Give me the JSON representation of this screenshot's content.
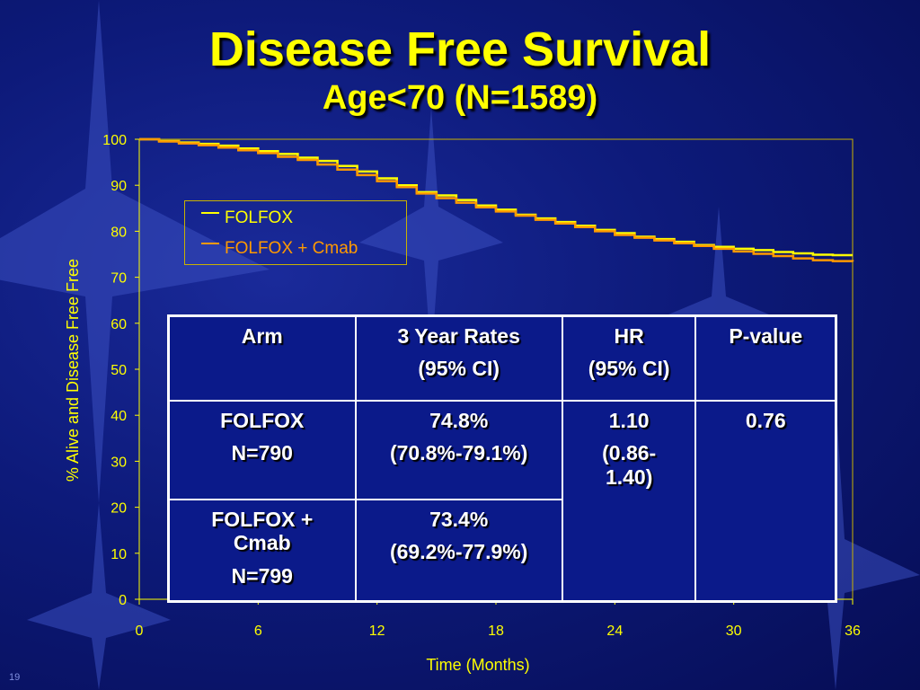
{
  "title": "Disease Free Survival",
  "subtitle": "Age<70 (N=1589)",
  "slide_number": "19",
  "colors": {
    "background": "#0d1a7a",
    "text_yellow": "#ffff00",
    "folfox": "#ffff00",
    "folfox_cmab": "#ff9900",
    "table_border": "#ffffff"
  },
  "legend": {
    "items": [
      {
        "label": "FOLFOX",
        "color": "#ffff00"
      },
      {
        "label": "FOLFOX + Cmab",
        "color": "#ff9900"
      }
    ]
  },
  "table": {
    "header": [
      {
        "lines": [
          "Arm"
        ]
      },
      {
        "lines": [
          "3 Year Rates",
          "(95% CI)"
        ]
      },
      {
        "lines": [
          "HR",
          "(95% CI)"
        ]
      },
      {
        "lines": [
          "P-value"
        ]
      }
    ],
    "row1": {
      "arm": [
        "FOLFOX",
        "N=790"
      ],
      "rate": [
        "74.8%",
        "(70.8%-79.1%)"
      ],
      "hr": [
        "1.10",
        "(0.86-",
        "1.40)"
      ],
      "p": [
        "0.76"
      ]
    },
    "row2": {
      "arm": [
        "FOLFOX +",
        "Cmab",
        "N=799"
      ],
      "rate": [
        "73.4%",
        "(69.2%-77.9%)"
      ]
    }
  },
  "chart_data": {
    "type": "line",
    "xlabel": "Time (Months)",
    "ylabel": "% Alive and Disease Free Free",
    "xlim": [
      0,
      36
    ],
    "ylim": [
      0,
      100
    ],
    "xticks": [
      0,
      6,
      12,
      18,
      24,
      30,
      36
    ],
    "yticks": [
      0,
      10,
      20,
      30,
      40,
      50,
      60,
      70,
      80,
      90,
      100
    ],
    "grid": false,
    "legend_position": "top-left",
    "series": [
      {
        "name": "FOLFOX",
        "color": "#ffff00",
        "points": [
          [
            0,
            100
          ],
          [
            1,
            99.6
          ],
          [
            2,
            99.3
          ],
          [
            3,
            99
          ],
          [
            4,
            98.6
          ],
          [
            5,
            98
          ],
          [
            6,
            97.4
          ],
          [
            7,
            96.8
          ],
          [
            8,
            96
          ],
          [
            9,
            95.3
          ],
          [
            10,
            94.2
          ],
          [
            11,
            93
          ],
          [
            12,
            91.5
          ],
          [
            13,
            90
          ],
          [
            14,
            88.5
          ],
          [
            15,
            87.8
          ],
          [
            16,
            86.8
          ],
          [
            17,
            85.6
          ],
          [
            18,
            84.7
          ],
          [
            19,
            83.6
          ],
          [
            20,
            82.8
          ],
          [
            21,
            82
          ],
          [
            22,
            81.2
          ],
          [
            23,
            80.3
          ],
          [
            24,
            79.6
          ],
          [
            25,
            78.8
          ],
          [
            26,
            78.3
          ],
          [
            27,
            77.7
          ],
          [
            28,
            77
          ],
          [
            29,
            76.6
          ],
          [
            30,
            76.2
          ],
          [
            31,
            75.9
          ],
          [
            32,
            75.5
          ],
          [
            33,
            75.2
          ],
          [
            34,
            74.9
          ],
          [
            35,
            74.8
          ],
          [
            36,
            74.8
          ]
        ]
      },
      {
        "name": "FOLFOX + Cmab",
        "color": "#ff9900",
        "points": [
          [
            0,
            100
          ],
          [
            1,
            99.5
          ],
          [
            2,
            99.1
          ],
          [
            3,
            98.7
          ],
          [
            4,
            98.2
          ],
          [
            5,
            97.6
          ],
          [
            6,
            97
          ],
          [
            7,
            96.2
          ],
          [
            8,
            95.5
          ],
          [
            9,
            94.5
          ],
          [
            10,
            93.4
          ],
          [
            11,
            92.2
          ],
          [
            12,
            90.9
          ],
          [
            13,
            89.6
          ],
          [
            14,
            88.2
          ],
          [
            15,
            87.2
          ],
          [
            16,
            86.2
          ],
          [
            17,
            85.2
          ],
          [
            18,
            84.3
          ],
          [
            19,
            83.4
          ],
          [
            20,
            82.5
          ],
          [
            21,
            81.7
          ],
          [
            22,
            80.9
          ],
          [
            23,
            80
          ],
          [
            24,
            79.2
          ],
          [
            25,
            78.6
          ],
          [
            26,
            78
          ],
          [
            27,
            77.4
          ],
          [
            28,
            76.8
          ],
          [
            29,
            76.2
          ],
          [
            30,
            75.6
          ],
          [
            31,
            75.1
          ],
          [
            32,
            74.6
          ],
          [
            33,
            74.1
          ],
          [
            34,
            73.7
          ],
          [
            35,
            73.5
          ],
          [
            36,
            73.4
          ]
        ]
      }
    ]
  }
}
